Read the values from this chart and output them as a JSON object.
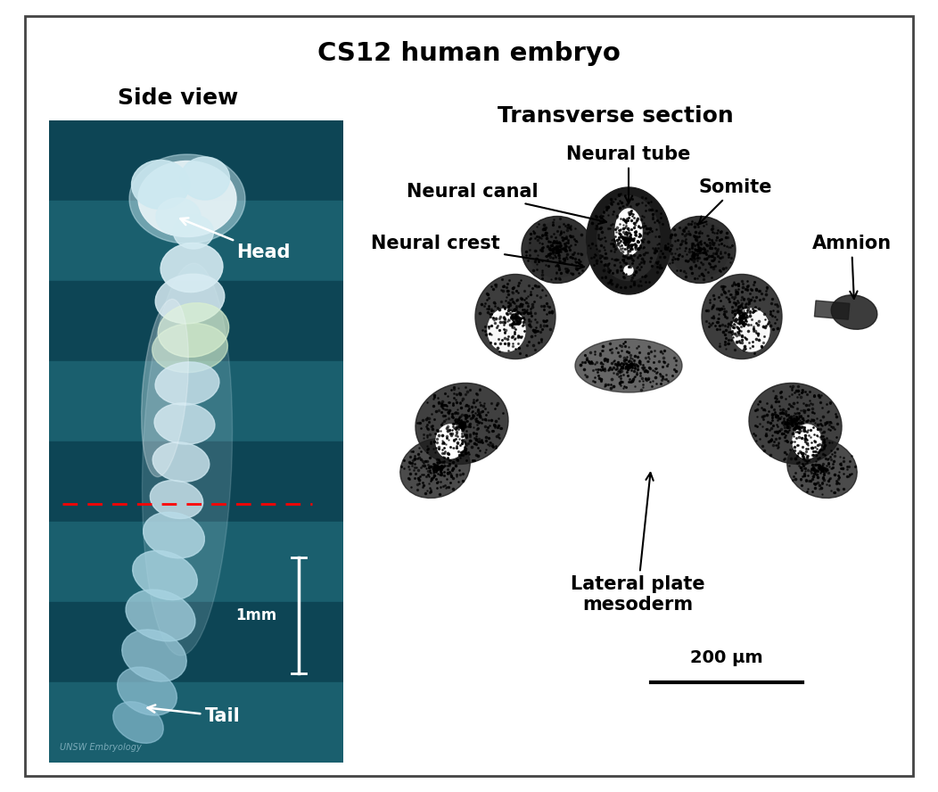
{
  "title": "CS12 human embryo",
  "title_fontsize": 21,
  "title_fontweight": "bold",
  "left_panel_title": "Side view",
  "right_panel_title": "Transverse section",
  "panel_title_fontsize": 18,
  "panel_title_fontweight": "bold",
  "bg_color": "#ffffff",
  "border_color": "#444444",
  "left_panel_bg": "#1a5f6e",
  "scale_bar_left_text": "1mm",
  "scale_bar_right_text": "200 μm",
  "dashed_line_color": "red",
  "unsw_watermark": "UNSW Embryology",
  "figure_width": 10.52,
  "figure_height": 8.88
}
